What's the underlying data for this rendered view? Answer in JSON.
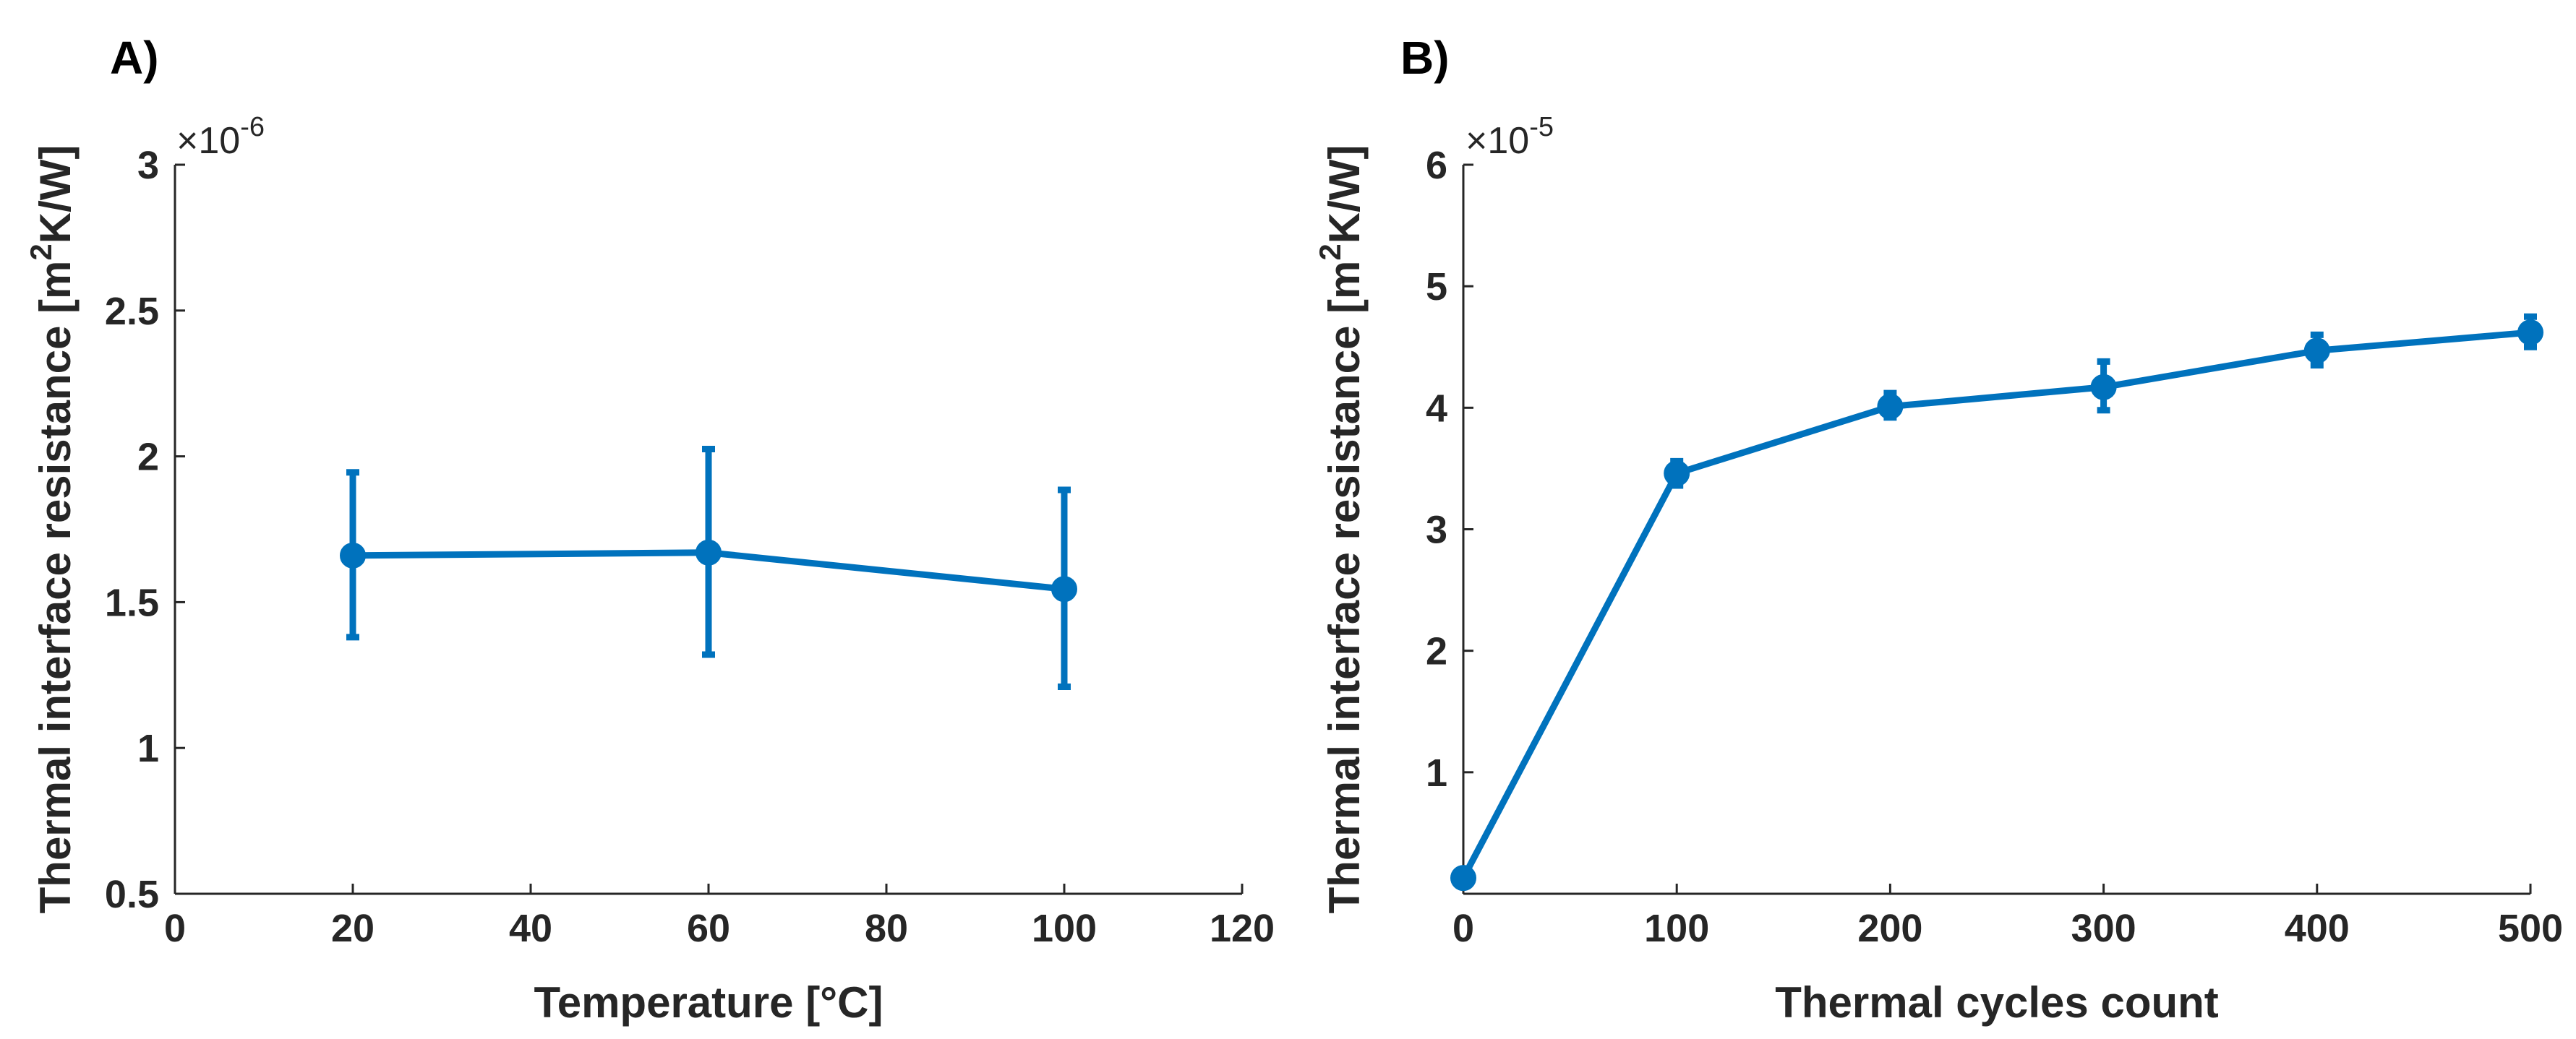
{
  "chart_data": [
    {
      "panel": "A)",
      "type": "line",
      "xlabel": "Temperature [°C]",
      "ylabel": "Thermal interface resistance [m^2K/W]",
      "ylabel_parts": [
        "Thermal interface resistance [m",
        "2",
        "K/W]"
      ],
      "y_multiplier": "×10",
      "y_exponent": "-6",
      "xlim": [
        0,
        120
      ],
      "ylim": [
        0.5,
        3
      ],
      "xticks": [
        0,
        20,
        40,
        60,
        80,
        100,
        120
      ],
      "yticks": [
        0.5,
        1,
        1.5,
        2,
        2.5,
        3
      ],
      "ytick_labels": [
        "0.5",
        "1",
        "1.5",
        "2",
        "2.5",
        "3"
      ],
      "grid": false,
      "color": "#0072BD",
      "series": [
        {
          "x": [
            20,
            60,
            100
          ],
          "y": [
            1.66,
            1.67,
            1.545
          ],
          "err_low": [
            1.38,
            1.32,
            1.21
          ],
          "err_high": [
            1.945,
            2.025,
            1.885
          ]
        }
      ]
    },
    {
      "panel": "B)",
      "type": "line",
      "xlabel": "Thermal cycles count",
      "ylabel": "Thermal interface resistance [m^2K/W]",
      "ylabel_parts": [
        "Thermal interface resistance [m",
        "2",
        "K/W]"
      ],
      "y_multiplier": "×10",
      "y_exponent": "-5",
      "xlim": [
        0,
        500
      ],
      "ylim": [
        0,
        6
      ],
      "xticks": [
        0,
        100,
        200,
        300,
        400,
        500
      ],
      "yticks": [
        1,
        2,
        3,
        4,
        5,
        6
      ],
      "ytick_labels": [
        "1",
        "2",
        "3",
        "4",
        "5",
        "6"
      ],
      "grid": false,
      "color": "#0072BD",
      "series": [
        {
          "x": [
            0,
            100,
            200,
            300,
            400,
            500
          ],
          "y": [
            0.13,
            3.46,
            4.01,
            4.17,
            4.47,
            4.62
          ],
          "err_low": [
            0.13,
            3.36,
            3.92,
            3.98,
            4.35,
            4.5
          ],
          "err_high": [
            0.13,
            3.56,
            4.12,
            4.38,
            4.6,
            4.75
          ]
        }
      ]
    }
  ]
}
